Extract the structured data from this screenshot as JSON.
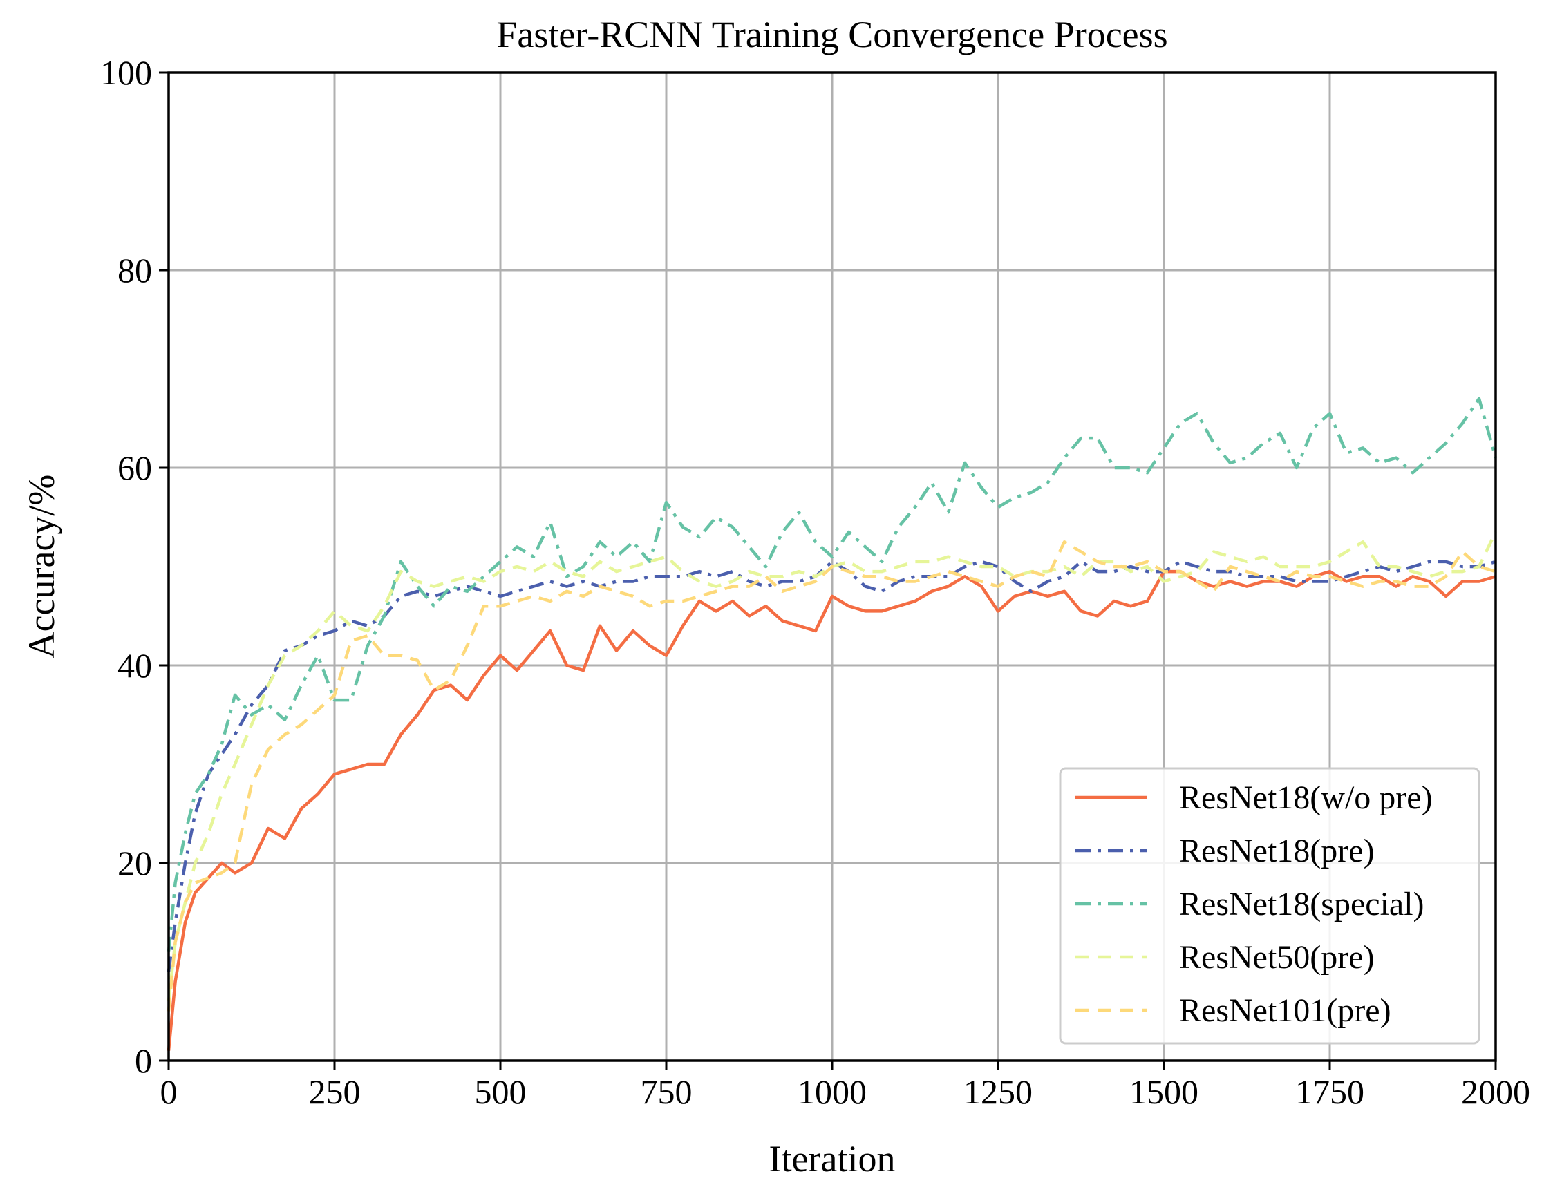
{
  "chart_data": {
    "type": "line",
    "title": "Faster-RCNN Training Convergence Process",
    "xlabel": "Iteration",
    "ylabel": "Accuracy/%",
    "xlim": [
      0,
      2000
    ],
    "ylim": [
      0,
      100
    ],
    "xticks": [
      0,
      250,
      500,
      750,
      1000,
      1250,
      1500,
      1750,
      2000
    ],
    "xtick_labels": [
      "0",
      "250",
      "500",
      "750",
      "1000",
      "1250",
      "1500",
      "1750",
      "2000"
    ],
    "yticks": [
      0,
      20,
      40,
      60,
      80,
      100
    ],
    "ytick_labels": [
      "0",
      "20",
      "40",
      "60",
      "80",
      "100"
    ],
    "grid": true,
    "legend_position": "lower-right",
    "series": [
      {
        "name": "ResNet18(w/o pre)",
        "color": "#f46d43",
        "dash": "solid",
        "x": [
          0,
          10,
          25,
          40,
          60,
          80,
          100,
          125,
          150,
          175,
          200,
          225,
          250,
          275,
          300,
          325,
          350,
          375,
          400,
          425,
          450,
          475,
          500,
          525,
          550,
          575,
          600,
          625,
          650,
          675,
          700,
          725,
          750,
          775,
          800,
          825,
          850,
          875,
          900,
          925,
          950,
          975,
          1000,
          1025,
          1050,
          1075,
          1100,
          1125,
          1150,
          1175,
          1200,
          1225,
          1250,
          1275,
          1300,
          1325,
          1350,
          1375,
          1400,
          1425,
          1450,
          1475,
          1500,
          1525,
          1550,
          1575,
          1600,
          1625,
          1650,
          1675,
          1700,
          1725,
          1750,
          1775,
          1800,
          1825,
          1850,
          1875,
          1900,
          1925,
          1950,
          1975,
          2000
        ],
        "y": [
          1,
          8,
          14,
          17,
          18.5,
          20,
          19,
          20,
          23.5,
          22.5,
          25.5,
          27,
          29,
          29.5,
          30,
          30,
          33,
          35,
          37.5,
          38,
          36.5,
          39,
          41,
          39.5,
          41.5,
          43.5,
          40,
          39.5,
          44,
          41.5,
          43.5,
          42,
          41,
          44,
          46.5,
          45.5,
          46.5,
          45,
          46,
          44.5,
          44,
          43.5,
          47,
          46,
          45.5,
          45.5,
          46,
          46.5,
          47.5,
          48,
          49,
          48,
          45.5,
          47,
          47.5,
          47,
          47.5,
          45.5,
          45,
          46.5,
          46,
          46.5,
          49.5,
          49.5,
          48.5,
          48,
          48.5,
          48,
          48.5,
          48.5,
          48,
          49,
          49.5,
          48.5,
          49,
          49,
          48,
          49,
          48.5,
          47,
          48.5,
          48.5,
          49
        ]
      },
      {
        "name": "ResNet18(pre)",
        "color": "#4b5fad",
        "dash": "dashdot",
        "x": [
          0,
          10,
          25,
          40,
          60,
          80,
          100,
          125,
          150,
          175,
          200,
          225,
          250,
          275,
          300,
          325,
          350,
          375,
          400,
          425,
          450,
          475,
          500,
          525,
          550,
          575,
          600,
          625,
          650,
          675,
          700,
          725,
          750,
          775,
          800,
          825,
          850,
          875,
          900,
          925,
          950,
          975,
          1000,
          1025,
          1050,
          1075,
          1100,
          1125,
          1150,
          1175,
          1200,
          1225,
          1250,
          1275,
          1300,
          1325,
          1350,
          1375,
          1400,
          1425,
          1450,
          1475,
          1500,
          1525,
          1550,
          1575,
          1600,
          1625,
          1650,
          1675,
          1700,
          1725,
          1750,
          1775,
          1800,
          1825,
          1850,
          1875,
          1900,
          1925,
          1950,
          1975,
          2000
        ],
        "y": [
          9,
          14,
          20,
          25,
          29,
          31,
          33,
          36,
          38,
          41.5,
          42,
          43,
          43.5,
          44.5,
          44,
          45,
          47,
          47.5,
          47,
          47.5,
          48,
          47.5,
          47,
          47.5,
          48,
          48.5,
          48,
          48.5,
          48,
          48.5,
          48.5,
          49,
          49,
          49,
          49.5,
          49,
          49.5,
          48.5,
          48,
          48.5,
          48.5,
          49,
          50.5,
          49.5,
          48,
          47.5,
          48.5,
          49,
          49,
          49,
          50,
          50.5,
          50,
          48.5,
          47.5,
          48.5,
          49,
          50.5,
          49.5,
          49.5,
          50,
          49.5,
          49.5,
          50.5,
          50,
          49.5,
          49.5,
          49,
          49,
          49,
          48.5,
          48.5,
          48.5,
          49,
          49.5,
          50,
          49.5,
          50,
          50.5,
          50.5,
          50,
          50,
          50.5
        ]
      },
      {
        "name": "ResNet18(special)",
        "color": "#66c2a5",
        "dash": "dashdot",
        "x": [
          0,
          10,
          25,
          40,
          60,
          80,
          100,
          125,
          150,
          175,
          200,
          225,
          250,
          275,
          300,
          325,
          350,
          375,
          400,
          425,
          450,
          475,
          500,
          525,
          550,
          575,
          600,
          625,
          650,
          675,
          700,
          725,
          750,
          775,
          800,
          825,
          850,
          875,
          900,
          925,
          950,
          975,
          1000,
          1025,
          1050,
          1075,
          1100,
          1125,
          1150,
          1175,
          1200,
          1225,
          1250,
          1275,
          1300,
          1325,
          1350,
          1375,
          1400,
          1425,
          1450,
          1475,
          1500,
          1525,
          1550,
          1575,
          1600,
          1625,
          1650,
          1675,
          1700,
          1725,
          1750,
          1775,
          1800,
          1825,
          1850,
          1875,
          1900,
          1925,
          1950,
          1975,
          2000
        ],
        "y": [
          11,
          18,
          23,
          27,
          29,
          32,
          37,
          35,
          36,
          34.5,
          38,
          41,
          36.5,
          36.5,
          42,
          45,
          50.5,
          48,
          46,
          48,
          47.5,
          49,
          50.5,
          52,
          51,
          54.5,
          49,
          50,
          52.5,
          51,
          52.5,
          50.5,
          56.5,
          54,
          53,
          55,
          54,
          52,
          50,
          53.5,
          55.5,
          52.5,
          51,
          53.5,
          52,
          50.5,
          54,
          56,
          58.5,
          55.5,
          60.5,
          58,
          56,
          57,
          57.5,
          58.5,
          61,
          63,
          63,
          60,
          60,
          59.5,
          62,
          64.5,
          65.5,
          62.5,
          60.5,
          61,
          62.5,
          63.5,
          60,
          64,
          65.5,
          61.5,
          62,
          60.5,
          61,
          59.5,
          61,
          62.5,
          64.5,
          67,
          61
        ]
      },
      {
        "name": "ResNet50(pre)",
        "color": "#e6f598",
        "dash": "dashed",
        "x": [
          0,
          10,
          25,
          40,
          60,
          80,
          100,
          125,
          150,
          175,
          200,
          225,
          250,
          275,
          300,
          325,
          350,
          375,
          400,
          425,
          450,
          475,
          500,
          525,
          550,
          575,
          600,
          625,
          650,
          675,
          700,
          725,
          750,
          775,
          800,
          825,
          850,
          875,
          900,
          925,
          950,
          975,
          1000,
          1025,
          1050,
          1075,
          1100,
          1125,
          1150,
          1175,
          1200,
          1225,
          1250,
          1275,
          1300,
          1325,
          1350,
          1375,
          1400,
          1425,
          1450,
          1475,
          1500,
          1525,
          1550,
          1575,
          1600,
          1625,
          1650,
          1675,
          1700,
          1725,
          1750,
          1775,
          1800,
          1825,
          1850,
          1875,
          1900,
          1925,
          1950,
          1975,
          2000
        ],
        "y": [
          6,
          12,
          16,
          20,
          23,
          27,
          30,
          34,
          38,
          41,
          42,
          43.5,
          45.5,
          44,
          43.5,
          46,
          49.5,
          48.5,
          48,
          48.5,
          49,
          48.5,
          49.5,
          50,
          49.5,
          50.5,
          49.5,
          49,
          50.5,
          49.5,
          50,
          50.5,
          51,
          49.5,
          48.5,
          48,
          48.5,
          49.5,
          49,
          49,
          49.5,
          49,
          50,
          50.5,
          49.5,
          49.5,
          50,
          50.5,
          50.5,
          51,
          50.5,
          50,
          50,
          49,
          49.5,
          49.5,
          50,
          49,
          50.5,
          50.5,
          49.5,
          50,
          48.5,
          49,
          49.5,
          51.5,
          51,
          50.5,
          51,
          50,
          50,
          50,
          50.5,
          51.5,
          52.5,
          50,
          50,
          49.5,
          49,
          49.5,
          49.5,
          50,
          53.5
        ]
      },
      {
        "name": "ResNet101(pre)",
        "color": "#fdd97a",
        "dash": "dashed",
        "x": [
          0,
          10,
          25,
          40,
          60,
          80,
          100,
          125,
          150,
          175,
          200,
          225,
          250,
          275,
          300,
          325,
          350,
          375,
          400,
          425,
          450,
          475,
          500,
          525,
          550,
          575,
          600,
          625,
          650,
          675,
          700,
          725,
          750,
          775,
          800,
          825,
          850,
          875,
          900,
          925,
          950,
          975,
          1000,
          1025,
          1050,
          1075,
          1100,
          1125,
          1150,
          1175,
          1200,
          1225,
          1250,
          1275,
          1300,
          1325,
          1350,
          1375,
          1400,
          1425,
          1450,
          1475,
          1500,
          1525,
          1550,
          1575,
          1600,
          1625,
          1650,
          1675,
          1700,
          1725,
          1750,
          1775,
          1800,
          1825,
          1850,
          1875,
          1900,
          1925,
          1950,
          1975,
          2000
        ],
        "y": [
          5,
          12,
          16,
          18,
          18.5,
          19,
          20,
          28,
          31.5,
          33,
          34,
          35.5,
          37,
          42.5,
          43,
          41,
          41,
          40.5,
          37.5,
          38.5,
          42,
          46,
          46,
          46.5,
          47,
          46.5,
          47.5,
          47,
          48,
          47.5,
          47,
          46,
          46.5,
          46.5,
          47,
          47.5,
          48,
          48,
          49,
          47.5,
          48,
          48.5,
          50,
          49.5,
          49,
          49,
          48.5,
          48.5,
          49,
          49.5,
          49,
          48.5,
          48,
          49,
          49.5,
          49,
          52.5,
          51.5,
          50.5,
          50,
          50,
          50.5,
          49.5,
          49.5,
          48.5,
          47.5,
          50,
          49.5,
          49,
          48.5,
          49.5,
          49,
          49,
          48.5,
          48,
          48.5,
          48.5,
          48,
          48,
          49,
          51.5,
          50,
          49.5
        ]
      }
    ]
  }
}
